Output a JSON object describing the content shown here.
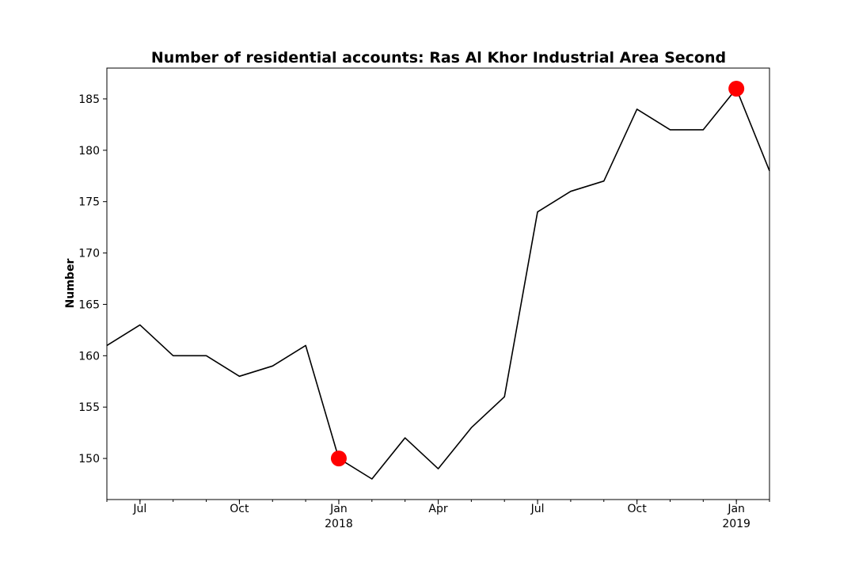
{
  "chart_data": {
    "type": "line",
    "title": "Number of residential accounts: Ras Al Khor Industrial Area Second",
    "xlabel": "",
    "ylabel": "Number",
    "x": [
      "2017-06",
      "2017-07",
      "2017-08",
      "2017-09",
      "2017-10",
      "2017-11",
      "2017-12",
      "2018-01",
      "2018-02",
      "2018-03",
      "2018-04",
      "2018-05",
      "2018-06",
      "2018-07",
      "2018-08",
      "2018-09",
      "2018-10",
      "2018-11",
      "2018-12",
      "2019-01",
      "2019-02"
    ],
    "series": [
      {
        "values": [
          161,
          163,
          160,
          160,
          158,
          159,
          161,
          150,
          148,
          152,
          149,
          153,
          156,
          174,
          176,
          177,
          184,
          182,
          182,
          186,
          178
        ],
        "color": "#000000"
      }
    ],
    "highlights": [
      {
        "x": "2018-01",
        "y": 150,
        "color": "#ff0000"
      },
      {
        "x": "2019-01",
        "y": 186,
        "color": "#ff0000"
      }
    ],
    "ylim": [
      146,
      188
    ],
    "yticks": [
      150,
      155,
      160,
      165,
      170,
      175,
      180,
      185
    ],
    "xticks": [
      {
        "x": "2017-07",
        "label": "Jul",
        "year": ""
      },
      {
        "x": "2017-10",
        "label": "Oct",
        "year": ""
      },
      {
        "x": "2018-01",
        "label": "Jan",
        "year": "2018"
      },
      {
        "x": "2018-04",
        "label": "Apr",
        "year": ""
      },
      {
        "x": "2018-07",
        "label": "Jul",
        "year": ""
      },
      {
        "x": "2018-10",
        "label": "Oct",
        "year": ""
      },
      {
        "x": "2019-01",
        "label": "Jan",
        "year": "2019"
      }
    ],
    "grid": false,
    "legend": "none"
  }
}
